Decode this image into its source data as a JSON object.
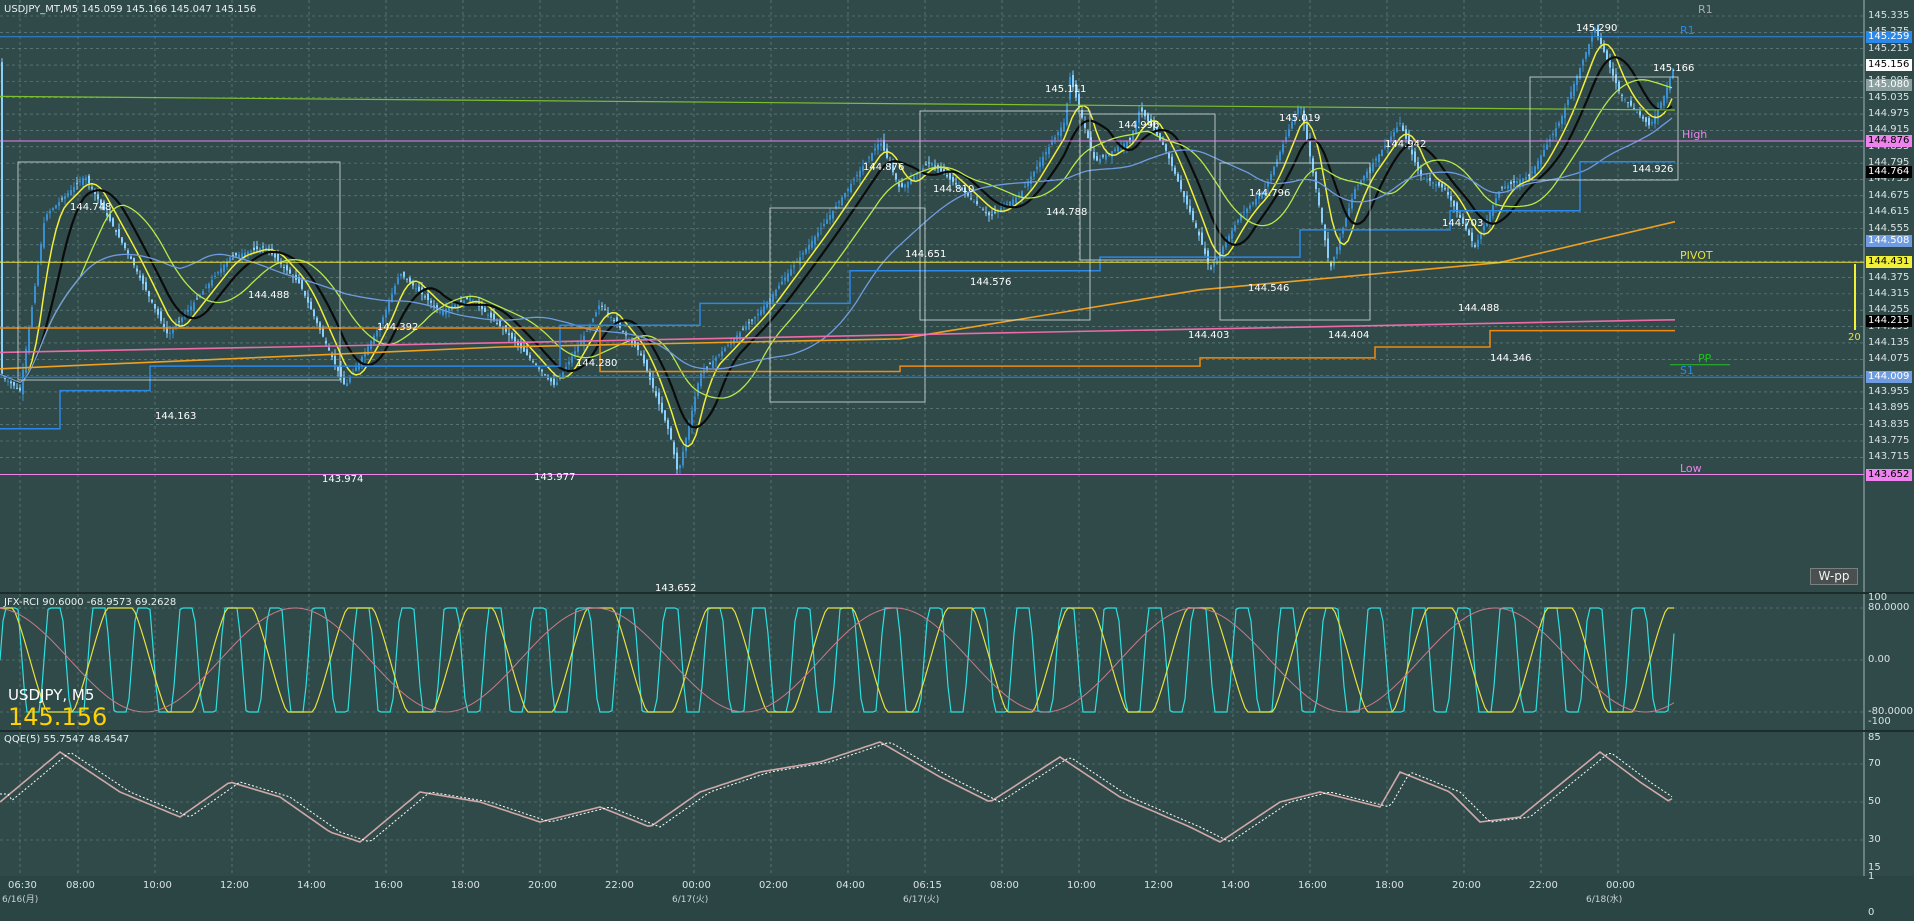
{
  "window": {
    "header": "USDJPY_MT,M5  145.059 145.166 145.047 145.156",
    "symbol": "USDJPY, M5",
    "last_price": "145.156"
  },
  "colors": {
    "background": "#2f4a49",
    "grid": "#6f8a8a",
    "candle_up": "#3a8fd0",
    "candle_down": "#8ad0ff",
    "ma_black": "#0b0b0b",
    "ma_yellow": "#f0ef3a",
    "ma_lightgreen": "#b8e84a",
    "ma_blue": "#6f9be0",
    "ma_orange": "#f0a020",
    "ma_pink": "#ee6aa8",
    "stepline_blue": "#2a88e8",
    "stepline_orange": "#f08a10",
    "rci_cyan": "#2de0e0",
    "rci_yellow": "#e8e040",
    "rci_pink": "#c87a8a",
    "qqe_main": "#d0a8a8",
    "qqe_signal": "#ffffff"
  },
  "price_axis": {
    "ticks": [
      "145.335",
      "145.275",
      "145.215",
      "145.155",
      "145.095",
      "145.035",
      "144.975",
      "144.915",
      "144.855",
      "144.795",
      "144.735",
      "144.675",
      "144.615",
      "144.555",
      "144.495",
      "144.435",
      "144.375",
      "144.315",
      "144.255",
      "144.195",
      "144.135",
      "144.075",
      "144.015",
      "143.955",
      "143.895",
      "143.835",
      "143.775",
      "143.715"
    ],
    "tags": [
      {
        "text": "145.259",
        "bg": "#2a88e8",
        "fg": "#ffffff"
      },
      {
        "text": "145.156",
        "bg": "#ffffff",
        "fg": "#000000"
      },
      {
        "text": "145.080",
        "bg": "#8aa0a0",
        "fg": "#ffffff"
      },
      {
        "text": "144.876",
        "bg": "#ee82ee",
        "fg": "#000000"
      },
      {
        "text": "144.764",
        "bg": "#000000",
        "fg": "#ffffff"
      },
      {
        "text": "144.508",
        "bg": "#6f9be0",
        "fg": "#ffffff"
      },
      {
        "text": "144.431",
        "bg": "#f0ef3a",
        "fg": "#000000"
      },
      {
        "text": "144.215",
        "bg": "#000000",
        "fg": "#ffffff"
      },
      {
        "text": "144.009",
        "bg": "#6f9be0",
        "fg": "#ffffff"
      },
      {
        "text": "143.652",
        "bg": "#ee82ee",
        "fg": "#000000"
      }
    ]
  },
  "levels": [
    {
      "label": "R1",
      "price": 145.259,
      "color": "#2a88e8"
    },
    {
      "label": "High",
      "price": 144.876,
      "color": "#ee82ee"
    },
    {
      "label": "PIVOT",
      "price": 144.431,
      "color": "#e8e040"
    },
    {
      "label": "PP",
      "price": 144.055,
      "color": "#22c022"
    },
    {
      "label": "S1",
      "price": 144.009,
      "color": "#2a88e8"
    },
    {
      "label": "Low",
      "price": 143.652,
      "color": "#ee82ee"
    },
    {
      "label": "R1",
      "price": 145.335,
      "color": "#aaaaaa"
    }
  ],
  "extra_labels": {
    "wpp": "W-pp",
    "gauge": "20"
  },
  "price_labels": [
    "144.748",
    "144.163",
    "144.488",
    "143.974",
    "144.392",
    "144.280",
    "143.977",
    "143.652",
    "144.876",
    "144.810",
    "144.651",
    "144.576",
    "145.111",
    "144.788",
    "144.996",
    "144.403",
    "144.796",
    "144.546",
    "145.019",
    "144.404",
    "144.942",
    "144.703",
    "144.488",
    "144.346",
    "145.290",
    "145.166",
    "144.926"
  ],
  "rci": {
    "header": "JFX-RCI 90.6000 -68.9573 69.2628",
    "axis": [
      "100",
      "80.0000",
      "0.00",
      "-80.0000",
      "-100"
    ]
  },
  "qqe": {
    "header": "QQE(5) 55.7547 48.4547",
    "axis": [
      "85",
      "70",
      "50",
      "30",
      "15"
    ]
  },
  "time_axis": {
    "labels": [
      "06:30",
      "08:00",
      "10:00",
      "12:00",
      "14:00",
      "16:00",
      "18:00",
      "20:00",
      "22:00",
      "00:00",
      "02:00",
      "04:00",
      "06:15",
      "08:00",
      "10:00",
      "12:00",
      "14:00",
      "16:00",
      "18:00",
      "20:00",
      "22:00",
      "00:00"
    ],
    "dates": [
      "6/16(月)",
      "6/17(火)",
      "6/17(火)",
      "6/18(水)"
    ],
    "bottom_axis": [
      "1",
      "0"
    ]
  }
}
